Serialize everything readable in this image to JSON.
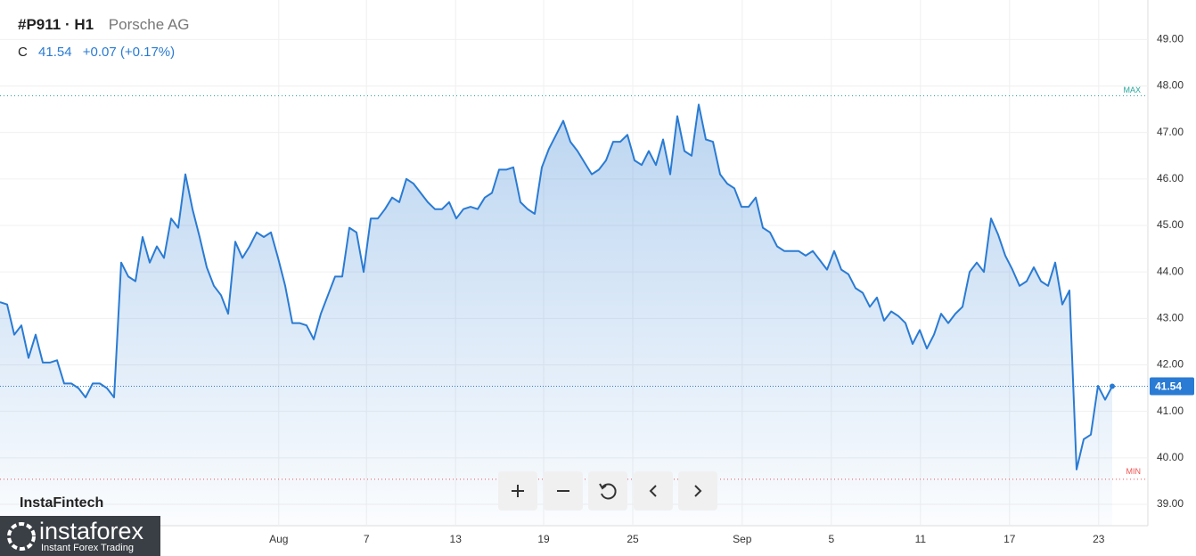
{
  "chart_data": {
    "type": "area",
    "title": "#P911 · H1",
    "subtitle": "Porsche AG",
    "quote": {
      "prefix": "C",
      "close": "41.54",
      "change": "+0.07 (+0.17%)"
    },
    "brand": {
      "top": "InstaFintech",
      "name": "instaforex",
      "tagline": "Instant Forex Trading"
    },
    "color": "#2a7bd3",
    "values": [
      43.35,
      43.3,
      42.65,
      42.85,
      42.15,
      42.65,
      42.05,
      42.05,
      42.1,
      41.6,
      41.6,
      41.5,
      41.3,
      41.6,
      41.6,
      41.5,
      41.3,
      44.2,
      43.9,
      43.8,
      44.75,
      44.2,
      44.55,
      44.3,
      45.15,
      44.95,
      46.1,
      45.35,
      44.75,
      44.1,
      43.7,
      43.5,
      43.1,
      44.65,
      44.3,
      44.55,
      44.85,
      44.75,
      44.85,
      44.3,
      43.7,
      42.9,
      42.9,
      42.85,
      42.55,
      43.1,
      43.5,
      43.9,
      43.9,
      44.95,
      44.85,
      44.0,
      45.15,
      45.15,
      45.35,
      45.6,
      45.5,
      46.0,
      45.9,
      45.7,
      45.5,
      45.35,
      45.35,
      45.5,
      45.15,
      45.35,
      45.4,
      45.35,
      45.6,
      45.7,
      46.2,
      46.2,
      46.25,
      45.5,
      45.35,
      45.25,
      46.25,
      46.65,
      46.95,
      47.25,
      46.8,
      46.6,
      46.35,
      46.1,
      46.2,
      46.4,
      46.8,
      46.8,
      46.95,
      46.4,
      46.3,
      46.6,
      46.3,
      46.85,
      46.1,
      47.35,
      46.6,
      46.5,
      47.6,
      46.85,
      46.8,
      46.1,
      45.9,
      45.8,
      45.4,
      45.4,
      45.6,
      44.95,
      44.85,
      44.55,
      44.45,
      44.45,
      44.45,
      44.35,
      44.45,
      44.25,
      44.05,
      44.45,
      44.05,
      43.95,
      43.65,
      43.55,
      43.25,
      43.45,
      42.95,
      43.15,
      43.05,
      42.9,
      42.45,
      42.75,
      42.35,
      42.65,
      43.1,
      42.9,
      43.1,
      43.25,
      44.0,
      44.2,
      44.0,
      45.15,
      44.8,
      44.35,
      44.05,
      43.7,
      43.8,
      44.1,
      43.8,
      43.7,
      44.2,
      43.3,
      43.6,
      39.75,
      40.4,
      40.5,
      41.55,
      41.25,
      41.54
    ],
    "xlim": [
      0,
      161
    ],
    "xticks": [
      {
        "value": 39.1,
        "label": "Aug"
      },
      {
        "value": 51.4,
        "label": "7"
      },
      {
        "value": 63.9,
        "label": "13"
      },
      {
        "value": 76.25,
        "label": "19"
      },
      {
        "value": 88.75,
        "label": "25"
      },
      {
        "value": 104.1,
        "label": "Sep"
      },
      {
        "value": 116.6,
        "label": "5"
      },
      {
        "value": 129.1,
        "label": "11"
      },
      {
        "value": 141.6,
        "label": "17"
      },
      {
        "value": 154.1,
        "label": "23"
      }
    ],
    "ylim": [
      38.54,
      49.85
    ],
    "yticks": [
      {
        "value": 39,
        "label": "39.00"
      },
      {
        "value": 40,
        "label": "40.00"
      },
      {
        "value": 41,
        "label": "41.00"
      },
      {
        "value": 42,
        "label": "42.00"
      },
      {
        "value": 43,
        "label": "43.00"
      },
      {
        "value": 44,
        "label": "44.00"
      },
      {
        "value": 45,
        "label": "45.00"
      },
      {
        "value": 46,
        "label": "46.00"
      },
      {
        "value": 47,
        "label": "47.00"
      },
      {
        "value": 48,
        "label": "48.00"
      },
      {
        "value": 49,
        "label": "49.00"
      }
    ],
    "grid": true,
    "reference_lines": [
      {
        "label": "MAX",
        "value": 47.79,
        "color": "#26a69a"
      },
      {
        "label": "MIN",
        "value": 39.54,
        "color": "#ef5350"
      }
    ],
    "last_price": {
      "value": 41.54,
      "label": "41.54",
      "color": "#2a7bd3"
    }
  }
}
